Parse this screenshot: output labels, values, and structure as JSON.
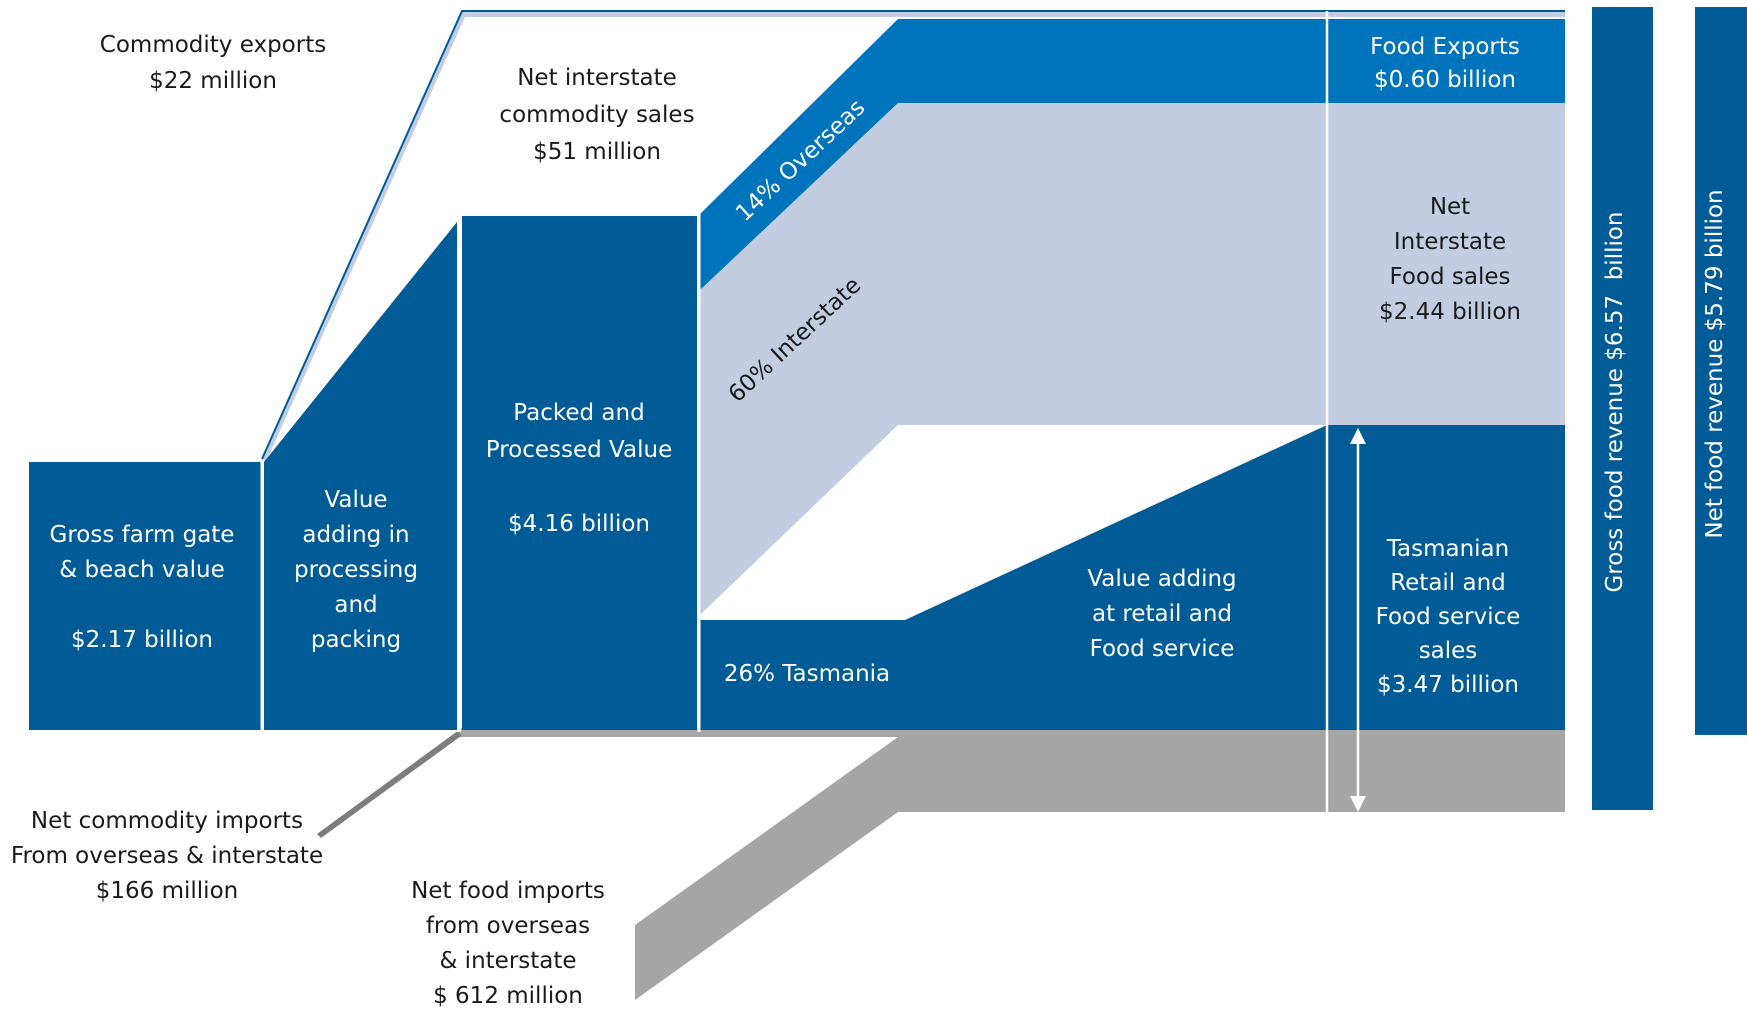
{
  "colors": {
    "dark_blue": "#005b96",
    "mid_blue": "#0073bd",
    "light_blue": "#c3cde2",
    "grey": "#a5a5a5",
    "dark_grey": "#7d7d7d",
    "text_dark": "#1a1a1a",
    "text_light": "#ffffff"
  },
  "stages": {
    "farm_gate": {
      "lines": [
        "Gross farm gate",
        "& beach value",
        "",
        "$2.17 billion"
      ]
    },
    "value_adding_processing": {
      "lines": [
        "Value",
        "adding in",
        "processing",
        "and",
        "packing"
      ]
    },
    "packed_processed": {
      "lines": [
        "Packed and",
        "Processed Value",
        "",
        "$4.16 billion"
      ]
    },
    "tasmania_share": {
      "label": "26% Tasmania"
    },
    "overseas_share": {
      "label": "14% Overseas"
    },
    "interstate_share": {
      "label": "60% Interstate"
    },
    "value_adding_retail": {
      "lines": [
        "Value adding",
        "at retail and",
        "Food service"
      ]
    },
    "food_exports": {
      "lines": [
        "Food Exports",
        "$0.60 billion"
      ]
    },
    "net_interstate_food": {
      "lines": [
        "Net",
        "Interstate",
        "Food sales",
        "$2.44 billion"
      ]
    },
    "tasmanian_retail": {
      "lines": [
        "Tasmanian",
        "Retail and",
        "Food service",
        "sales",
        "$3.47 billion"
      ]
    }
  },
  "flows": {
    "commodity_exports": {
      "lines": [
        "Commodity exports",
        "$22 million"
      ]
    },
    "net_interstate_commodity": {
      "lines": [
        "Net interstate",
        "commodity sales",
        "$51 million"
      ]
    },
    "net_commodity_imports": {
      "lines": [
        "Net commodity imports",
        "From overseas & interstate",
        "$166 million"
      ]
    },
    "net_food_imports": {
      "lines": [
        "Net food imports",
        "from overseas",
        "& interstate",
        "$ 612 million"
      ]
    }
  },
  "totals": {
    "gross_food_revenue": {
      "label": "Gross food revenue $6.57  billion"
    },
    "net_food_revenue": {
      "label": "Net food revenue $5.79 billion"
    }
  }
}
